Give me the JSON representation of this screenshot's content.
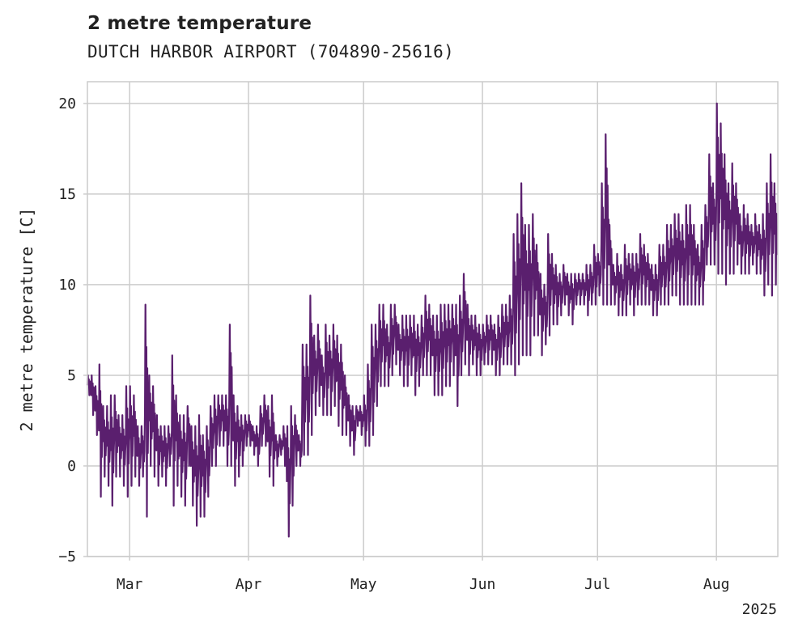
{
  "chart_data": {
    "type": "line",
    "title": "2 metre temperature",
    "subtitle": "DUTCH HARBOR AIRPORT (704890-25616)",
    "ylabel": "2 metre temperature [C]",
    "xlabel": "",
    "year_label": "2025",
    "x_range": [
      "2025-02-18",
      "2025-08-17"
    ],
    "ylim": [
      -5,
      21.2
    ],
    "y_ticks": [
      -5,
      0,
      5,
      10,
      15,
      20
    ],
    "y_tick_labels": [
      "−5",
      "0",
      "5",
      "10",
      "15",
      "20"
    ],
    "x_ticks": [
      {
        "date": "2025-03-01",
        "label": "Mar"
      },
      {
        "date": "2025-04-01",
        "label": "Apr"
      },
      {
        "date": "2025-05-01",
        "label": "May"
      },
      {
        "date": "2025-06-01",
        "label": "Jun"
      },
      {
        "date": "2025-07-01",
        "label": "Jul"
      },
      {
        "date": "2025-08-01",
        "label": "Aug"
      }
    ],
    "grid": true,
    "line_color": "#5a1f6e",
    "series": [
      {
        "x": [
          "2025-02-18",
          "2025-02-19",
          "2025-02-20",
          "2025-02-21",
          "2025-02-22",
          "2025-02-23",
          "2025-02-24",
          "2025-02-25",
          "2025-02-26",
          "2025-02-27",
          "2025-02-28",
          "2025-03-01",
          "2025-03-02",
          "2025-03-03",
          "2025-03-04",
          "2025-03-05",
          "2025-03-06",
          "2025-03-07",
          "2025-03-08",
          "2025-03-09",
          "2025-03-10",
          "2025-03-11",
          "2025-03-12",
          "2025-03-13",
          "2025-03-14",
          "2025-03-15",
          "2025-03-16",
          "2025-03-17",
          "2025-03-18",
          "2025-03-19",
          "2025-03-20",
          "2025-03-21",
          "2025-03-22",
          "2025-03-23",
          "2025-03-24",
          "2025-03-25",
          "2025-03-26",
          "2025-03-27",
          "2025-03-28",
          "2025-03-29",
          "2025-03-30",
          "2025-03-31",
          "2025-04-01",
          "2025-04-02",
          "2025-04-03",
          "2025-04-04",
          "2025-04-05",
          "2025-04-06",
          "2025-04-07",
          "2025-04-08",
          "2025-04-09",
          "2025-04-10",
          "2025-04-11",
          "2025-04-12",
          "2025-04-13",
          "2025-04-14",
          "2025-04-15",
          "2025-04-16",
          "2025-04-17",
          "2025-04-18",
          "2025-04-19",
          "2025-04-20",
          "2025-04-21",
          "2025-04-22",
          "2025-04-23",
          "2025-04-24",
          "2025-04-25",
          "2025-04-26",
          "2025-04-27",
          "2025-04-28",
          "2025-04-29",
          "2025-04-30",
          "2025-05-01",
          "2025-05-02",
          "2025-05-03",
          "2025-05-04",
          "2025-05-05",
          "2025-05-06",
          "2025-05-07",
          "2025-05-08",
          "2025-05-09",
          "2025-05-10",
          "2025-05-11",
          "2025-05-12",
          "2025-05-13",
          "2025-05-14",
          "2025-05-15",
          "2025-05-16",
          "2025-05-17",
          "2025-05-18",
          "2025-05-19",
          "2025-05-20",
          "2025-05-21",
          "2025-05-22",
          "2025-05-23",
          "2025-05-24",
          "2025-05-25",
          "2025-05-26",
          "2025-05-27",
          "2025-05-28",
          "2025-05-29",
          "2025-05-30",
          "2025-05-31",
          "2025-06-01",
          "2025-06-02",
          "2025-06-03",
          "2025-06-04",
          "2025-06-05",
          "2025-06-06",
          "2025-06-07",
          "2025-06-08",
          "2025-06-09",
          "2025-06-10",
          "2025-06-11",
          "2025-06-12",
          "2025-06-13",
          "2025-06-14",
          "2025-06-15",
          "2025-06-16",
          "2025-06-17",
          "2025-06-18",
          "2025-06-19",
          "2025-06-20",
          "2025-06-21",
          "2025-06-22",
          "2025-06-23",
          "2025-06-24",
          "2025-06-25",
          "2025-06-26",
          "2025-06-27",
          "2025-06-28",
          "2025-06-29",
          "2025-06-30",
          "2025-07-01",
          "2025-07-02",
          "2025-07-03",
          "2025-07-04",
          "2025-07-05",
          "2025-07-06",
          "2025-07-07",
          "2025-07-08",
          "2025-07-09",
          "2025-07-10",
          "2025-07-11",
          "2025-07-12",
          "2025-07-13",
          "2025-07-14",
          "2025-07-15",
          "2025-07-16",
          "2025-07-17",
          "2025-07-18",
          "2025-07-19",
          "2025-07-20",
          "2025-07-21",
          "2025-07-22",
          "2025-07-23",
          "2025-07-24",
          "2025-07-25",
          "2025-07-26",
          "2025-07-27",
          "2025-07-28",
          "2025-07-29",
          "2025-07-30",
          "2025-07-31",
          "2025-08-01",
          "2025-08-02",
          "2025-08-03",
          "2025-08-04",
          "2025-08-05",
          "2025-08-06",
          "2025-08-07",
          "2025-08-08",
          "2025-08-09",
          "2025-08-10",
          "2025-08-11",
          "2025-08-12",
          "2025-08-13",
          "2025-08-14",
          "2025-08-15",
          "2025-08-16"
        ],
        "min": [
          3.9,
          2.8,
          1.7,
          -1.7,
          -0.6,
          -1.1,
          -2.2,
          -0.6,
          -0.6,
          -1.1,
          -1.7,
          -1.1,
          -0.6,
          -1.1,
          -0.6,
          -2.8,
          0.0,
          -0.6,
          -1.1,
          -0.6,
          -1.1,
          0.0,
          -2.2,
          -1.1,
          -1.7,
          -2.2,
          0.0,
          -2.2,
          -3.3,
          -2.8,
          -2.8,
          -1.7,
          0.0,
          0.0,
          1.1,
          1.1,
          0.0,
          0.0,
          -1.1,
          -0.6,
          0.0,
          1.1,
          1.1,
          0.6,
          0.0,
          1.1,
          1.1,
          -0.6,
          -1.1,
          0.0,
          0.6,
          0.0,
          -3.9,
          -2.2,
          0.0,
          0.0,
          0.6,
          0.6,
          1.7,
          2.8,
          3.3,
          2.8,
          2.8,
          2.8,
          3.3,
          2.2,
          1.7,
          1.7,
          1.1,
          0.6,
          2.2,
          1.7,
          1.1,
          1.1,
          1.7,
          3.3,
          4.4,
          4.4,
          4.4,
          5.0,
          5.6,
          5.0,
          4.4,
          4.4,
          5.0,
          3.9,
          4.4,
          5.0,
          5.0,
          5.0,
          3.9,
          3.9,
          3.9,
          4.4,
          4.4,
          5.0,
          3.3,
          5.0,
          5.6,
          5.0,
          5.6,
          5.0,
          5.0,
          5.6,
          5.6,
          5.6,
          5.0,
          5.0,
          5.6,
          5.6,
          5.6,
          5.0,
          5.6,
          6.1,
          6.1,
          6.1,
          7.2,
          7.2,
          6.1,
          6.7,
          7.2,
          7.8,
          7.8,
          8.3,
          8.9,
          8.3,
          7.8,
          8.9,
          8.9,
          8.9,
          8.3,
          8.9,
          8.9,
          9.4,
          8.9,
          8.9,
          8.9,
          8.9,
          8.3,
          8.3,
          8.3,
          8.9,
          8.3,
          8.9,
          8.9,
          8.9,
          8.9,
          8.3,
          8.3,
          8.9,
          8.9,
          8.9,
          9.4,
          9.4,
          8.9,
          8.9,
          8.9,
          8.9,
          8.9,
          8.9,
          8.9,
          11.1,
          11.1,
          11.1,
          10.6,
          10.6,
          10.0,
          10.6,
          10.6,
          11.1,
          10.6,
          10.6,
          10.6,
          11.1,
          10.6,
          10.6,
          9.4,
          10.0,
          9.4,
          10.0,
          11.1
        ],
        "max": [
          5.0,
          5.0,
          4.4,
          5.6,
          3.3,
          3.3,
          3.9,
          3.9,
          2.8,
          2.8,
          4.4,
          4.4,
          3.9,
          2.2,
          2.2,
          8.9,
          5.0,
          4.4,
          2.8,
          2.2,
          2.2,
          2.2,
          6.1,
          3.9,
          2.8,
          2.8,
          3.3,
          2.2,
          2.2,
          2.8,
          1.7,
          2.2,
          3.3,
          3.9,
          3.9,
          3.9,
          3.9,
          7.8,
          3.9,
          3.3,
          2.8,
          2.8,
          2.8,
          2.2,
          2.2,
          3.3,
          3.9,
          3.3,
          3.9,
          1.7,
          1.7,
          2.2,
          2.2,
          3.3,
          2.8,
          1.7,
          6.7,
          6.7,
          9.4,
          7.2,
          7.8,
          6.1,
          7.8,
          7.2,
          7.8,
          7.2,
          6.7,
          5.0,
          3.9,
          3.3,
          3.3,
          3.3,
          3.9,
          5.6,
          7.8,
          7.8,
          8.9,
          8.9,
          7.8,
          8.9,
          8.9,
          7.8,
          8.3,
          8.3,
          8.3,
          8.3,
          7.8,
          8.3,
          9.4,
          8.9,
          8.3,
          8.3,
          8.9,
          8.9,
          8.9,
          8.9,
          8.9,
          9.4,
          10.6,
          8.9,
          8.3,
          8.3,
          7.8,
          7.8,
          8.3,
          8.3,
          7.8,
          8.3,
          8.9,
          8.9,
          9.4,
          12.8,
          13.9,
          15.6,
          13.3,
          13.3,
          13.9,
          12.2,
          10.6,
          10.0,
          12.8,
          11.7,
          11.1,
          10.6,
          11.1,
          10.6,
          10.6,
          10.6,
          10.6,
          10.6,
          11.1,
          11.1,
          12.2,
          11.7,
          15.6,
          18.3,
          13.3,
          11.1,
          11.7,
          11.1,
          12.2,
          11.7,
          11.7,
          11.7,
          12.8,
          12.2,
          11.7,
          11.1,
          11.1,
          12.2,
          12.2,
          13.3,
          13.3,
          13.9,
          13.9,
          13.3,
          14.4,
          14.4,
          13.3,
          12.2,
          13.3,
          14.4,
          17.2,
          15.6,
          20.0,
          18.9,
          17.2,
          15.6,
          16.7,
          15.6,
          13.9,
          14.4,
          13.9,
          13.3,
          13.9,
          13.3,
          13.9,
          15.6,
          17.2,
          15.6,
          12.2,
          15.0,
          13.3
        ]
      }
    ]
  }
}
